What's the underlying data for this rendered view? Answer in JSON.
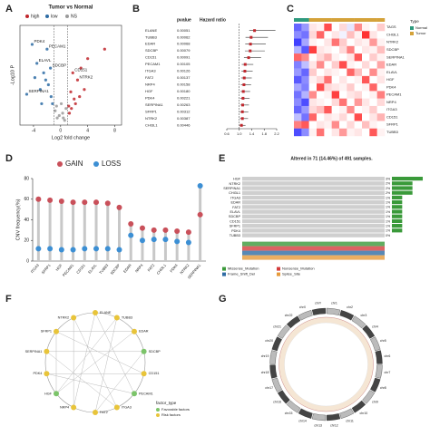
{
  "chart_data": [
    {
      "panel": "A",
      "type": "scatter",
      "title": "Tumor vs Normal",
      "xlabel": "Log2 fold change",
      "ylabel": "-Log10 P",
      "xlim": [
        -6,
        9
      ],
      "xticks": [
        -4,
        0,
        4,
        8
      ],
      "ylim": [
        0,
        4.2
      ],
      "series": [
        {
          "name": "high",
          "color": "#c0262c",
          "x": [
            1.2,
            1.5,
            2,
            2.5,
            3,
            1.8,
            3.5,
            4,
            1.3,
            2.2,
            6.5,
            2.8,
            1.6
          ],
          "values": [
            0.8,
            1.4,
            1.1,
            1.9,
            2.4,
            2.2,
            1.5,
            2.8,
            0.5,
            0.9,
            3.2,
            1.2,
            0.7
          ]
        },
        {
          "name": "low",
          "color": "#2e6ca4",
          "x": [
            -1.2,
            -1.8,
            -2.5,
            -3,
            -4.2,
            -2,
            -1.5,
            -3.5,
            -5,
            -2.8,
            -1.4,
            -2.2,
            -3.8
          ],
          "values": [
            0.9,
            1.7,
            2.2,
            1.5,
            3.4,
            3.2,
            2.4,
            2.6,
            1.3,
            0.9,
            1.2,
            1.9,
            2
          ]
        },
        {
          "name": "NS",
          "color": "#9a9a9a",
          "x": [
            -0.5,
            0.3,
            0.6,
            -0.8,
            0.1,
            -0.2,
            0.8,
            -0.6,
            0.4
          ],
          "values": [
            0.3,
            0.5,
            0.2,
            0.6,
            0.9,
            0.4,
            0.7,
            0.8,
            0.3
          ]
        }
      ],
      "labels": [
        {
          "text": "PDK4",
          "x": -4.2,
          "y": 3.4
        },
        {
          "text": "PECAM1",
          "x": -2,
          "y": 3.2
        },
        {
          "text": "ELAVL",
          "x": -3.5,
          "y": 2.6
        },
        {
          "text": "SDCBP",
          "x": -1.5,
          "y": 2.4
        },
        {
          "text": "CD151",
          "x": 1.8,
          "y": 2.2
        },
        {
          "text": "SERPINA1",
          "x": -5,
          "y": 1.3
        },
        {
          "text": "NTRK2",
          "x": 2.5,
          "y": 1.9
        }
      ]
    },
    {
      "panel": "B",
      "type": "forest",
      "headers": [
        "pvalue",
        "Hazard ratio"
      ],
      "categories": [
        "ELANE",
        "TUBB3",
        "EDAR",
        "SDCBP",
        "CD151",
        "PECAM1",
        "ITGA3",
        "FAT2",
        "NRP4",
        "HGF",
        "PDK4",
        "SERPINA1",
        "SFRP1",
        "NTRK2",
        "CHI3L1"
      ],
      "pvalues": [
        "0.00051",
        "0.00062",
        "0.00068",
        "0.00079",
        "0.00091",
        "0.00105",
        "0.00126",
        "0.00137",
        "0.00158",
        "0.00180",
        "0.00221",
        "0.00263",
        "0.00312",
        "0.00387",
        "0.00446"
      ],
      "values": [
        1.49,
        1.38,
        1.36,
        1.35,
        1.3,
        1.19,
        1.18,
        1.16,
        1.15,
        1.13,
        1.12,
        1.11,
        1.1,
        1.1,
        1.07
      ],
      "lower": [
        1.32,
        1.2,
        1.19,
        1.18,
        1.15,
        1.08,
        1.07,
        1.06,
        1.05,
        1.04,
        1.03,
        1.03,
        1.02,
        1.02,
        1.01
      ],
      "upper": [
        2.16,
        1.92,
        1.85,
        1.82,
        1.7,
        1.45,
        1.43,
        1.4,
        1.38,
        1.35,
        1.33,
        1.31,
        1.29,
        1.28,
        1.2
      ],
      "color": "#c0262c",
      "xlim": [
        0.6,
        2.2
      ],
      "xticks": [
        0.6,
        {
          "value": 1,
          "label": "1.0"
        },
        1.4,
        1.8,
        2.2
      ]
    },
    {
      "panel": "C",
      "type": "heatmap",
      "legend_title": "Type",
      "groups": [
        "Normal",
        "Tumor"
      ],
      "group_colors": [
        "#2e9a7e",
        "#d4a23a"
      ],
      "columns": [
        "Normal",
        "Normal",
        "Tumor",
        "Tumor",
        "Tumor",
        "Tumor",
        "Tumor",
        "Tumor",
        "Tumor",
        "Tumor",
        "Tumor",
        "Tumor"
      ],
      "categories": [
        "TAGS",
        "CHI3L1",
        "NTRK2",
        "SDCBP",
        "SERPINA1",
        "EDAR",
        "ELAVL",
        "HGF",
        "PDK4",
        "PECAM1",
        "NRP4",
        "ITGA3",
        "CD151",
        "SFRP1",
        "TUBB3"
      ],
      "values": [
        [
          -1.2,
          -0.8,
          0.2,
          0.1,
          1.4,
          0.0,
          0.3,
          -0.2,
          0.9,
          0.1,
          0.0,
          0.4
        ],
        [
          -0.9,
          -1.1,
          0.3,
          1.2,
          0.0,
          0.2,
          -0.1,
          0.5,
          0.1,
          1.6,
          0.2,
          0.0
        ],
        [
          -1.5,
          -0.7,
          0.1,
          0.0,
          0.2,
          1.1,
          0.4,
          0.0,
          0.2,
          0.1,
          0.8,
          0.1
        ],
        [
          -0.6,
          -1.3,
          1.5,
          0.2,
          0.1,
          0.0,
          0.3,
          1.0,
          0.0,
          0.2,
          0.1,
          0.5
        ],
        [
          1.2,
          0.9,
          0.0,
          0.3,
          0.6,
          0.1,
          0.0,
          0.2,
          1.3,
          0.0,
          0.4,
          0.1
        ],
        [
          -1.0,
          -0.5,
          0.2,
          0.9,
          0.0,
          0.4,
          1.4,
          0.1,
          0.0,
          0.3,
          0.0,
          0.7
        ],
        [
          -0.8,
          -1.2,
          0.4,
          0.0,
          0.2,
          0.1,
          0.0,
          1.2,
          0.5,
          0.0,
          0.9,
          0.1
        ],
        [
          -1.3,
          -0.9,
          0.1,
          0.3,
          1.1,
          0.0,
          0.2,
          0.0,
          0.1,
          1.3,
          0.0,
          0.2
        ],
        [
          -0.7,
          -1.0,
          0.0,
          1.4,
          0.3,
          0.2,
          0.1,
          0.4,
          0.0,
          0.1,
          1.2,
          0.0
        ],
        [
          -1.1,
          -0.6,
          0.9,
          0.0,
          0.1,
          1.5,
          0.0,
          0.2,
          0.3,
          0.0,
          0.1,
          1.0
        ],
        [
          -0.9,
          -1.4,
          0.2,
          0.1,
          0.0,
          0.3,
          1.1,
          0.0,
          0.8,
          0.2,
          0.0,
          0.3
        ],
        [
          -1.2,
          -0.8,
          0.3,
          0.5,
          1.3,
          0.0,
          0.1,
          0.9,
          0.0,
          0.1,
          0.4,
          0.0
        ],
        [
          -0.5,
          -1.1,
          1.2,
          0.0,
          0.2,
          0.1,
          0.3,
          0.0,
          1.4,
          0.0,
          0.2,
          0.6
        ],
        [
          1.0,
          1.3,
          0.0,
          0.2,
          0.1,
          0.9,
          0.0,
          0.3,
          0.0,
          0.5,
          0.1,
          0.0
        ],
        [
          -1.4,
          -0.9,
          0.1,
          1.1,
          0.0,
          0.2,
          0.8,
          0.1,
          0.2,
          0.0,
          1.3,
          0.1
        ]
      ]
    },
    {
      "panel": "D",
      "type": "lollipop",
      "ylabel": "CNV frequency(%)",
      "ylim": [
        0,
        80
      ],
      "yticks": [
        0,
        20,
        40,
        60,
        80
      ],
      "categories": [
        "ITGA3",
        "SFRP1",
        "HGF",
        "PECAM1",
        "CD151",
        "ELAVL",
        "TUBB3",
        "SDCBP",
        "EDAR",
        "NRP4",
        "FAT2",
        "CHI3L1",
        "PDK4",
        "NTRK2",
        "SERPINA1"
      ],
      "series": [
        {
          "name": "GAIN",
          "color": "#c9505a",
          "values": [
            60,
            59,
            58,
            57,
            57,
            57,
            56,
            52,
            36,
            32,
            30,
            30,
            29,
            28,
            45
          ]
        },
        {
          "name": "LOSS",
          "color": "#3c8fd4",
          "values": [
            12,
            12,
            11,
            11,
            12,
            12,
            12,
            11,
            25,
            20,
            21,
            21,
            19,
            18,
            73
          ]
        }
      ]
    },
    {
      "panel": "E",
      "type": "oncoprint",
      "title": "Altered in 71 (14.46%) of 491 samples.",
      "categories": [
        "HGF",
        "NTRK2",
        "SERPINA1",
        "CHI3L1",
        "ITGA3",
        "EDAR",
        "FAT2",
        "ELAVL",
        "SDCBP",
        "CD151",
        "SFRP1",
        "PDK4",
        "TUBB3"
      ],
      "values": [
        3,
        2,
        2,
        2,
        1,
        1,
        1,
        1,
        1,
        1,
        1,
        1,
        0
      ],
      "value_labels": [
        "3%",
        "2%",
        "2%",
        "2%",
        "1%",
        "1%",
        "1%",
        "1%",
        "1%",
        "1%",
        "1%",
        "1%",
        "0%"
      ],
      "color": "#3a9a3a",
      "legend": [
        {
          "name": "Missense_Mutation",
          "color": "#3a9a3a"
        },
        {
          "name": "Nonsense_Mutation",
          "color": "#d43c3c"
        },
        {
          "name": "Frame_Shift_Del",
          "color": "#2e6ca4"
        },
        {
          "name": "Splice_Site",
          "color": "#e69a3a"
        }
      ]
    },
    {
      "panel": "F",
      "type": "network",
      "nodes": [
        {
          "label": "ELANE",
          "group": 1
        },
        {
          "label": "TUBB3",
          "group": 1
        },
        {
          "label": "EDAR",
          "group": 1
        },
        {
          "label": "SDCBP",
          "group": 0
        },
        {
          "label": "CD151",
          "group": 1
        },
        {
          "label": "PECAM1",
          "group": 0
        },
        {
          "label": "ITGA3",
          "group": 1
        },
        {
          "label": "FAT2",
          "group": 1
        },
        {
          "label": "NRP4",
          "group": 1
        },
        {
          "label": "HGF",
          "group": 0
        },
        {
          "label": "PDK4",
          "group": 1
        },
        {
          "label": "SERPINA1",
          "group": 1
        },
        {
          "label": "SFRP1",
          "group": 1
        },
        {
          "label": "NTRK2",
          "group": 1
        }
      ],
      "edges": [
        [
          0,
          5
        ],
        [
          1,
          7
        ],
        [
          2,
          9
        ],
        [
          3,
          11
        ],
        [
          4,
          12
        ],
        [
          6,
          13
        ],
        [
          0,
          8
        ],
        [
          5,
          10
        ],
        [
          3,
          7
        ],
        [
          2,
          12
        ],
        [
          1,
          9
        ],
        [
          4,
          10
        ],
        [
          6,
          11
        ],
        [
          8,
          13
        ],
        [
          9,
          12
        ]
      ],
      "legend_title": "factor_type",
      "groups": [
        "Favorable factors",
        "Risk factors"
      ],
      "group_colors": [
        "#7cc46a",
        "#e8c43a"
      ]
    },
    {
      "panel": "G",
      "type": "circos",
      "categories": [
        "chr1",
        "chr2",
        "chr3",
        "chr4",
        "chr5",
        "chr6",
        "chr7",
        "chr8",
        "chr9",
        "chr10",
        "chr11",
        "chr12",
        "chr13",
        "chr14",
        "chr15",
        "chr16",
        "chr17",
        "chr18",
        "chr19",
        "chr20",
        "chr21",
        "chr22",
        "chrX",
        "chrY"
      ]
    }
  ]
}
